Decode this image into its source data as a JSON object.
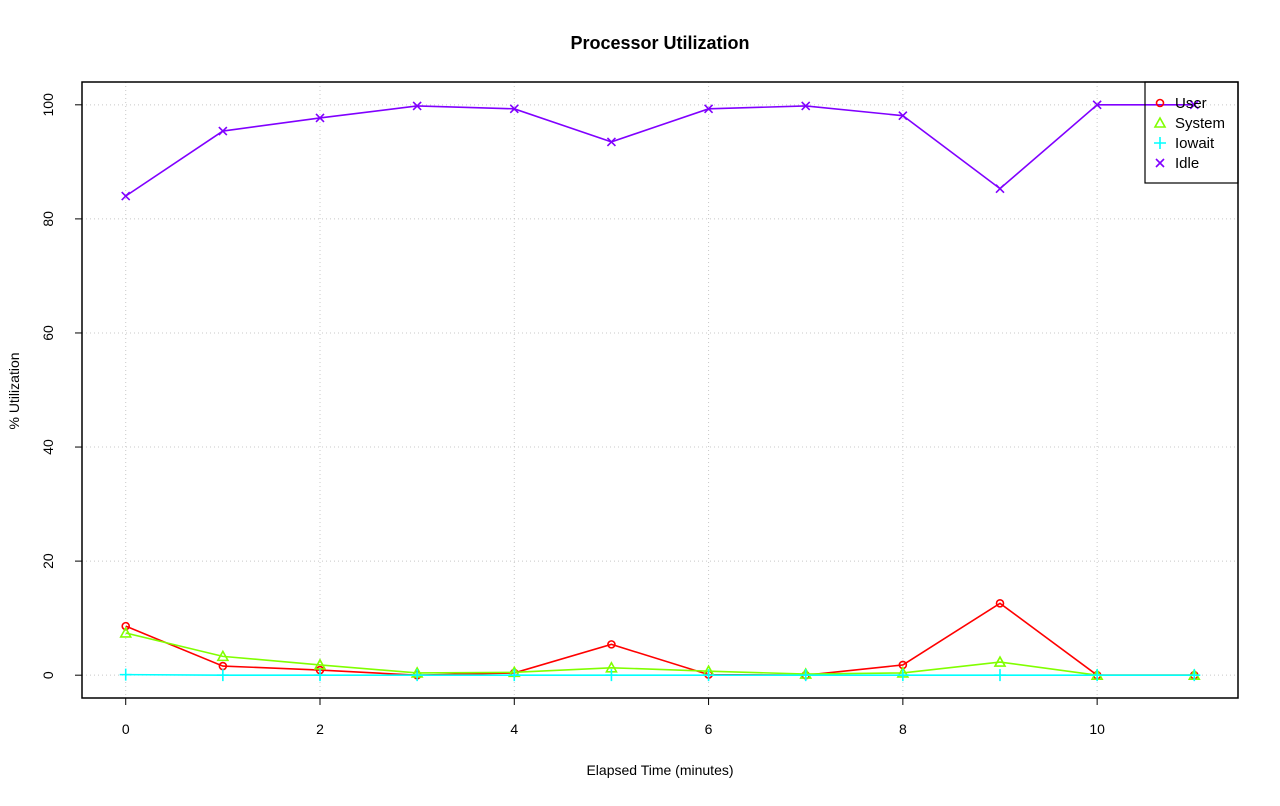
{
  "chart_data": {
    "type": "line",
    "title": "Processor Utilization",
    "xlabel": "Elapsed Time (minutes)",
    "ylabel": "% Utilization",
    "xlim": [
      -0.45,
      11.45
    ],
    "ylim": [
      -4,
      104
    ],
    "xticks": [
      0,
      2,
      4,
      6,
      8,
      10
    ],
    "yticks": [
      0,
      20,
      40,
      60,
      80,
      100
    ],
    "grid": true,
    "legend_position": "top-right",
    "x": [
      0,
      1,
      2,
      3,
      4,
      5,
      6,
      7,
      8,
      9,
      10,
      11
    ],
    "series": [
      {
        "name": "User",
        "color": "#ff0000",
        "marker": "circle",
        "values": [
          8.6,
          1.6,
          0.9,
          0.0,
          0.4,
          5.4,
          0.1,
          0.0,
          1.8,
          12.6,
          0.0,
          0.0
        ]
      },
      {
        "name": "System",
        "color": "#80ff00",
        "marker": "triangle",
        "values": [
          7.4,
          3.3,
          1.8,
          0.4,
          0.5,
          1.3,
          0.7,
          0.2,
          0.4,
          2.3,
          0.0,
          0.0
        ]
      },
      {
        "name": "Iowait",
        "color": "#00ffff",
        "marker": "plus",
        "values": [
          0.1,
          0.0,
          0.0,
          0.0,
          0.0,
          0.0,
          0.0,
          0.0,
          0.0,
          0.0,
          0.0,
          0.0
        ]
      },
      {
        "name": "Idle",
        "color": "#8000ff",
        "marker": "cross",
        "values": [
          84.0,
          95.4,
          97.7,
          99.8,
          99.3,
          93.5,
          99.3,
          99.8,
          98.1,
          85.3,
          100.0,
          100.0
        ]
      }
    ]
  }
}
